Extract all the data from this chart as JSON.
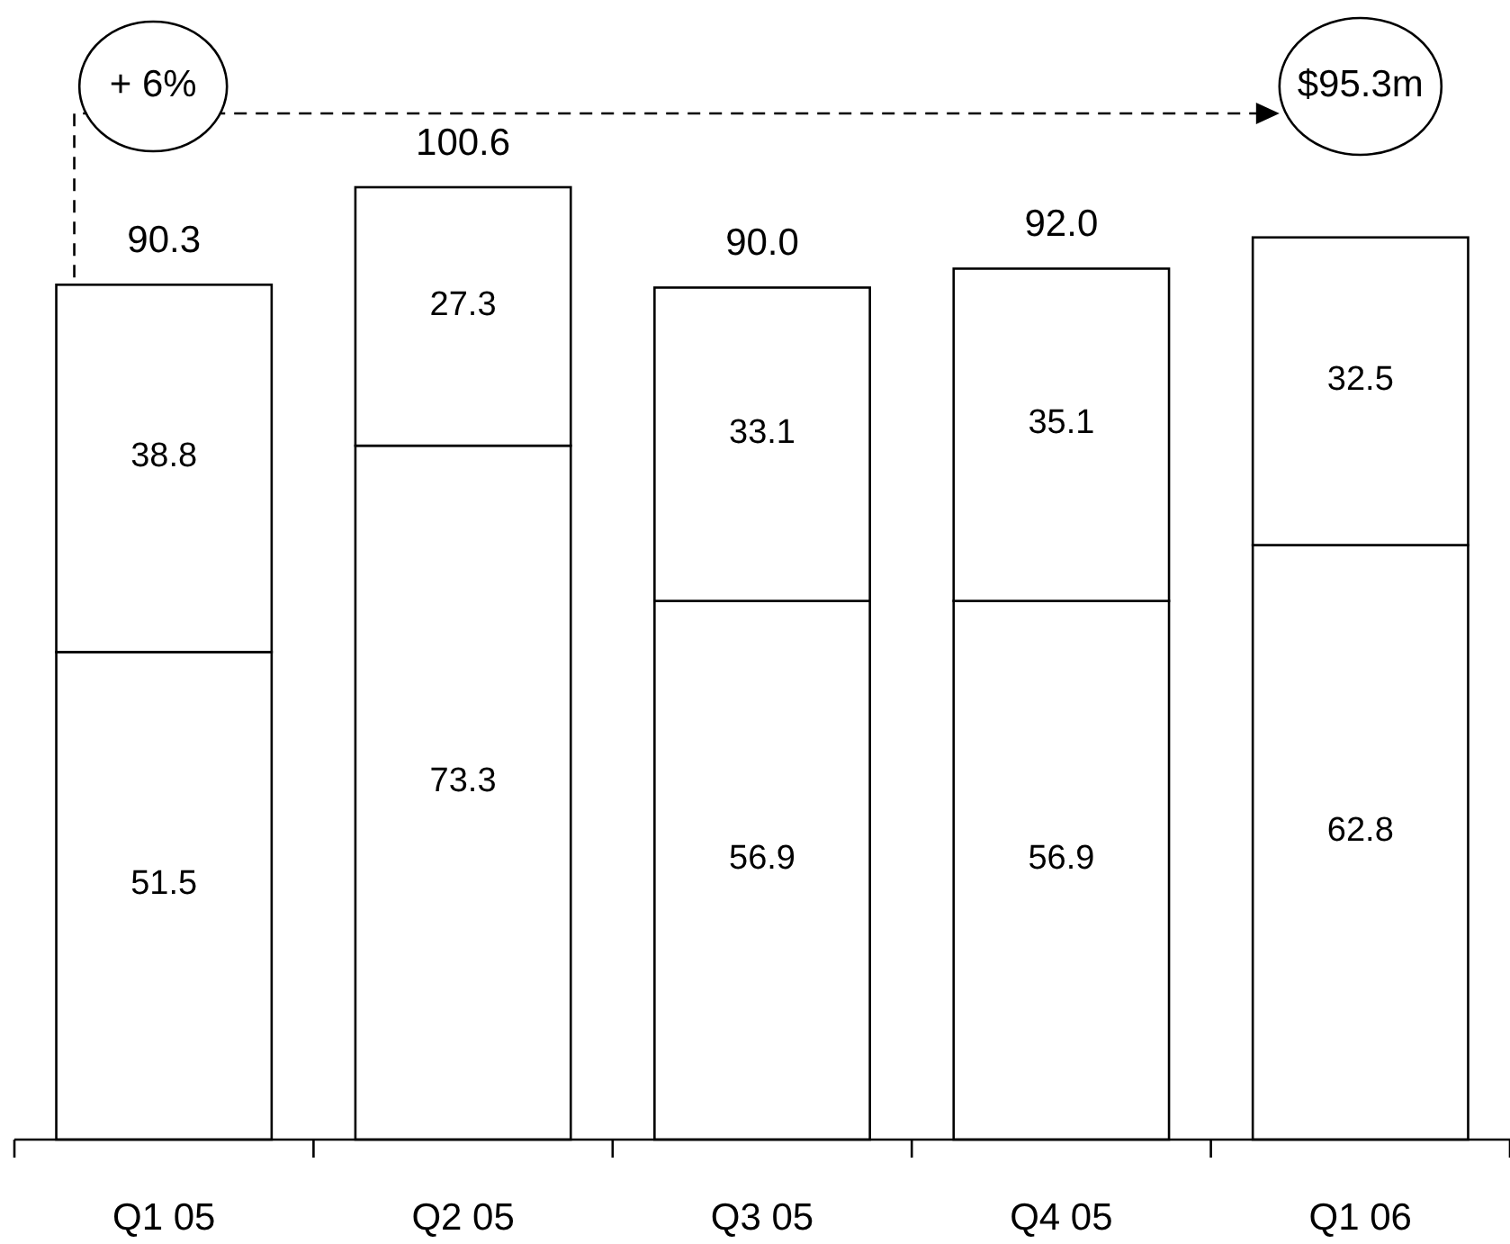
{
  "chart_data": {
    "type": "bar",
    "stacked": true,
    "categories": [
      "Q1 05",
      "Q2 05",
      "Q3 05",
      "Q4 05",
      "Q1 06"
    ],
    "series": [
      {
        "color": "#ffffff",
        "values": [
          51.5,
          73.3,
          56.9,
          56.9,
          62.8
        ]
      },
      {
        "color": "#ffffff",
        "values": [
          38.8,
          27.3,
          33.1,
          35.1,
          32.5
        ]
      }
    ],
    "data_labels": true,
    "totals": [
      "90.3",
      "100.6",
      "90.0",
      "92.0",
      null
    ],
    "annotations": [
      "+ 6%",
      "$95.3m"
    ]
  }
}
